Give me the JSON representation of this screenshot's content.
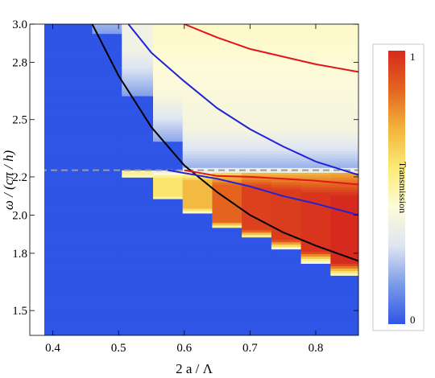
{
  "chart_data": {
    "type": "heatmap",
    "title": "",
    "xlabel": "2 a / Λ",
    "ylabel": "ω / (cπ / h)",
    "xlim": [
      0.365,
      0.865
    ],
    "ylim": [
      1.37,
      3.0
    ],
    "x_ticks": [
      {
        "value": 0.4,
        "label": "0.4"
      },
      {
        "value": 0.5,
        "label": "0.5"
      },
      {
        "value": 0.6,
        "label": "0.6"
      },
      {
        "value": 0.7,
        "label": "0.7"
      },
      {
        "value": 0.8,
        "label": "0.8"
      }
    ],
    "y_ticks": [
      {
        "value": 1.5,
        "label": "1.5"
      },
      {
        "value": 1.8,
        "label": "1.8"
      },
      {
        "value": 2.0,
        "label": "2.0"
      },
      {
        "value": 2.2,
        "label": "2.2"
      },
      {
        "value": 2.5,
        "label": "2.5"
      },
      {
        "value": 2.8,
        "label": "2.8"
      },
      {
        "value": 3.0,
        "label": "3.0"
      }
    ],
    "colorbar": {
      "label": "Transmission",
      "min": 0,
      "max": 1,
      "min_label": "0",
      "max_label": "1",
      "colors": [
        "#2f55e6",
        "#7a9ae8",
        "#dfe5f2",
        "#fdfbd8",
        "#fbeb74",
        "#f2b43c",
        "#e4651f",
        "#d62a1e"
      ]
    },
    "columns": [
      {
        "x": 0.39,
        "onset": null,
        "edge": null,
        "level": 0.0
      },
      {
        "x": 0.44,
        "onset": null,
        "edge": null,
        "level": 0.0
      },
      {
        "x": 0.48,
        "onset": 2.95,
        "edge": null,
        "level": 0.05
      },
      {
        "x": 0.53,
        "onset": 2.62,
        "edge": 2.2,
        "level": 0.12
      },
      {
        "x": 0.575,
        "onset": 2.38,
        "edge": 2.08,
        "level": 0.25
      },
      {
        "x": 0.62,
        "onset": 2.2,
        "edge": 2.01,
        "level": 0.45
      },
      {
        "x": 0.665,
        "onset": 2.2,
        "edge": 1.93,
        "level": 0.75
      },
      {
        "x": 0.71,
        "onset": 2.2,
        "edge": 1.88,
        "level": 0.9
      },
      {
        "x": 0.755,
        "onset": 2.2,
        "edge": 1.82,
        "level": 0.92
      },
      {
        "x": 0.8,
        "onset": 2.2,
        "edge": 1.75,
        "level": 0.95
      },
      {
        "x": 0.845,
        "onset": 2.2,
        "edge": 1.68,
        "level": 1.0
      }
    ],
    "series": [
      {
        "color": "#000000",
        "x": [
          0.46,
          0.5,
          0.55,
          0.6,
          0.65,
          0.7,
          0.75,
          0.8,
          0.865
        ],
        "y": [
          3.0,
          2.73,
          2.46,
          2.26,
          2.12,
          2.0,
          1.91,
          1.84,
          1.76
        ]
      },
      {
        "color": "#1f22d8",
        "x": [
          0.575,
          0.6,
          0.65,
          0.7,
          0.75,
          0.8,
          0.865
        ],
        "y": [
          2.235,
          2.22,
          2.19,
          2.15,
          2.1,
          2.06,
          2.0
        ]
      },
      {
        "color": "#e0161b",
        "x": [
          0.6,
          0.65,
          0.7,
          0.75,
          0.8,
          0.865
        ],
        "y": [
          2.235,
          2.205,
          2.2,
          2.19,
          2.18,
          2.16
        ]
      },
      {
        "color": "#1f22d8",
        "x": [
          0.515,
          0.55,
          0.6,
          0.65,
          0.7,
          0.75,
          0.8,
          0.865
        ],
        "y": [
          3.0,
          2.85,
          2.7,
          2.56,
          2.45,
          2.36,
          2.28,
          2.21
        ]
      },
      {
        "color": "#e0161b",
        "x": [
          0.6,
          0.65,
          0.7,
          0.75,
          0.8,
          0.865
        ],
        "y": [
          3.0,
          2.93,
          2.87,
          2.83,
          2.79,
          2.75
        ]
      }
    ],
    "reference_lines": [
      {
        "orientation": "horizontal",
        "y": 2.235,
        "style": "dashed",
        "color": "#9a9a9a"
      }
    ],
    "grid": false,
    "legend": "none"
  }
}
